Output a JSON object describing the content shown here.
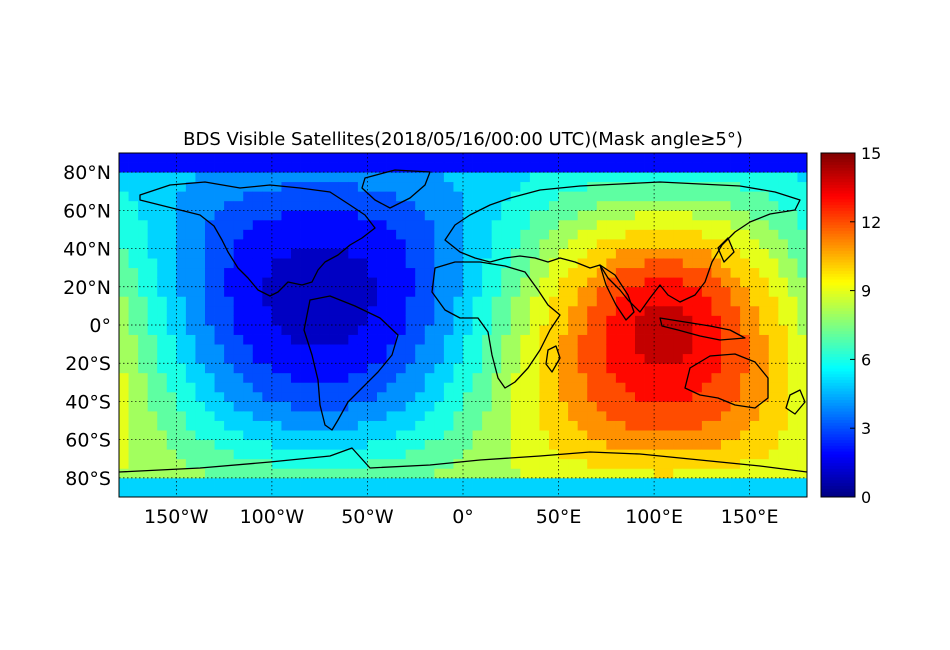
{
  "chart_data": {
    "type": "heatmap",
    "title": "BDS Visible Satellites(2018/05/16/00:00 UTC)(Mask angle≥5°)",
    "xlabel": "",
    "ylabel": "",
    "xlim": [
      -180,
      180
    ],
    "ylim": [
      -90,
      90
    ],
    "grid": true,
    "x_ticks": [
      {
        "value": -150,
        "label": "150°W"
      },
      {
        "value": -100,
        "label": "100°W"
      },
      {
        "value": -50,
        "label": "50°W"
      },
      {
        "value": 0,
        "label": "0°"
      },
      {
        "value": 50,
        "label": "50°E"
      },
      {
        "value": 100,
        "label": "100°E"
      },
      {
        "value": 150,
        "label": "150°E"
      }
    ],
    "y_ticks": [
      {
        "value": 80,
        "label": "80°N"
      },
      {
        "value": 60,
        "label": "60°N"
      },
      {
        "value": 40,
        "label": "40°N"
      },
      {
        "value": 20,
        "label": "20°N"
      },
      {
        "value": 0,
        "label": "0°"
      },
      {
        "value": -20,
        "label": "20°S"
      },
      {
        "value": -40,
        "label": "40°S"
      },
      {
        "value": -60,
        "label": "60°S"
      },
      {
        "value": -80,
        "label": "80°S"
      }
    ],
    "colorbar": {
      "min": 0,
      "max": 15,
      "colormap": "jet",
      "ticks": [
        "0",
        "3",
        "6",
        "9",
        "12",
        "15"
      ]
    },
    "grid_resolution_deg": 5,
    "field_description": "visible satellite count per 5° cell",
    "peak": {
      "lon": 105,
      "lat": 10,
      "value": 13
    },
    "trough": {
      "lon": -75,
      "lat": 15,
      "value": 1
    },
    "polar_north_value": 2,
    "polar_south_value": 5
  }
}
